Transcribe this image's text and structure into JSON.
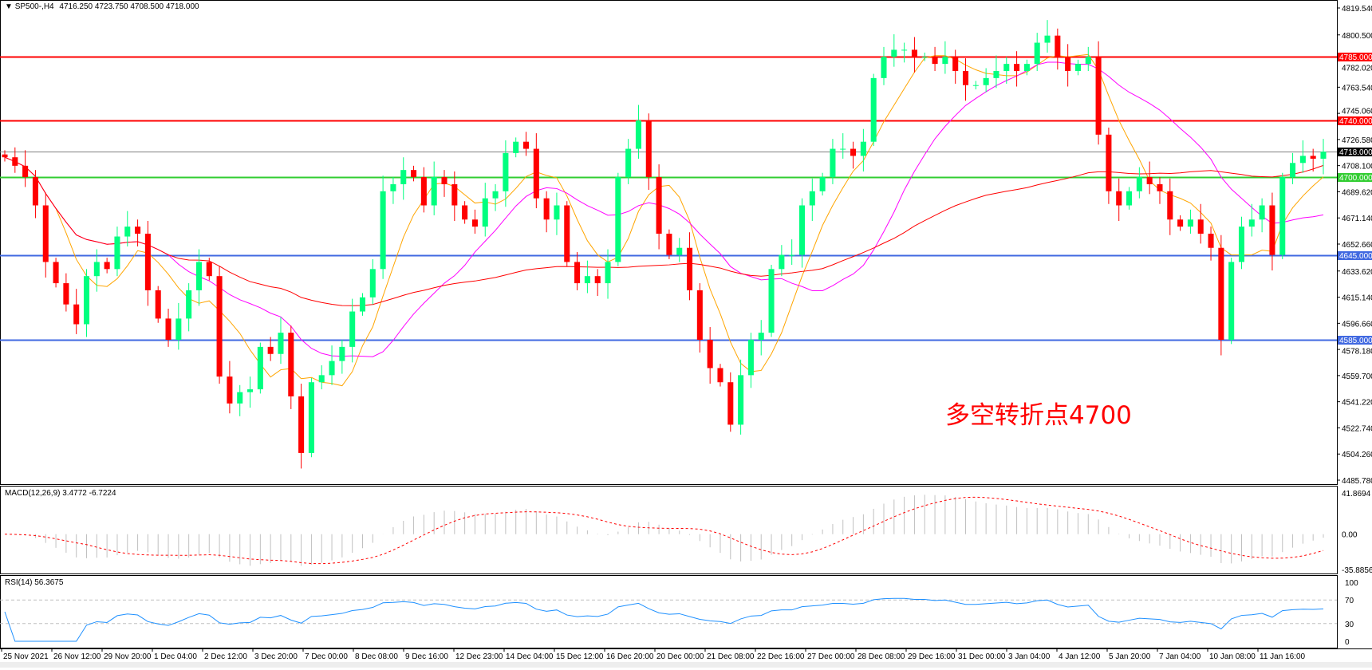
{
  "header": {
    "symbol": "SP500-,H4",
    "ohlc": "4716.250 4723.750 4708.500 4718.000",
    "icon": "triangle-down-icon"
  },
  "annotation": "多空转折点4700",
  "colors": {
    "bull": "#00ff7f",
    "bear": "#ff0000",
    "ma_fast": "#ffa500",
    "ma_mid": "#ff00ff",
    "ma_slow": "#ff0000",
    "resistance": "#ff0000",
    "pivot": "#32cd32",
    "support": "#4169e1",
    "current": "#808080",
    "macd_hist": "#c0c0c0",
    "macd_signal": "#ff0000",
    "rsi": "#1e90ff"
  },
  "chart_data": {
    "type": "candlestick",
    "symbol": "SP500-",
    "timeframe": "H4",
    "ylim": [
      4485.78,
      4819.54
    ],
    "y_ticks": [
      "4819.540",
      "4800.500",
      "4782.020",
      "4763.540",
      "4745.060",
      "4726.580",
      "4708.100",
      "4689.620",
      "4671.140",
      "4652.660",
      "4633.620",
      "4615.140",
      "4596.660",
      "4578.180",
      "4559.700",
      "4541.220",
      "4522.740",
      "4504.260",
      "4485.780"
    ],
    "x_ticks": [
      "25 Nov 2021",
      "26 Nov 12:00",
      "29 Nov 20:00",
      "1 Dec 04:00",
      "2 Dec 12:00",
      "3 Dec 20:00",
      "7 Dec 00:00",
      "8 Dec 08:00",
      "9 Dec 16:00",
      "12 Dec 23:00",
      "14 Dec 04:00",
      "15 Dec 12:00",
      "16 Dec 20:00",
      "20 Dec 00:00",
      "21 Dec 08:00",
      "22 Dec 16:00",
      "27 Dec 00:00",
      "28 Dec 08:00",
      "29 Dec 16:00",
      "31 Dec 00:00",
      "3 Jan 04:00",
      "4 Jan 12:00",
      "5 Jan 20:00",
      "7 Jan 04:00",
      "10 Jan 08:00",
      "11 Jan 16:00"
    ],
    "close": [
      4714,
      4708,
      4700,
      4680,
      4640,
      4625,
      4610,
      4596,
      4630,
      4640,
      4635,
      4658,
      4665,
      4660,
      4620,
      4600,
      4585,
      4600,
      4620,
      4640,
      4630,
      4559,
      4540,
      4548,
      4550,
      4580,
      4575,
      4590,
      4545,
      4505,
      4555,
      4560,
      4570,
      4580,
      4605,
      4615,
      4635,
      4690,
      4695,
      4705,
      4700,
      4680,
      4700,
      4695,
      4680,
      4670,
      4665,
      4685,
      4690,
      4717,
      4725,
      4720,
      4685,
      4670,
      4680,
      4640,
      4625,
      4630,
      4625,
      4640,
      4700,
      4720,
      4740,
      4700,
      4660,
      4645,
      4650,
      4620,
      4585,
      4565,
      4555,
      4525,
      4560,
      4585,
      4590,
      4635,
      4645,
      4645,
      4680,
      4690,
      4700,
      4720,
      4720,
      4715,
      4725,
      4770,
      4785,
      4790,
      4790,
      4785,
      4785,
      4780,
      4785,
      4775,
      4765,
      4765,
      4770,
      4775,
      4780,
      4775,
      4780,
      4795,
      4800,
      4785,
      4775,
      4780,
      4785,
      4730,
      4690,
      4680,
      4690,
      4700,
      4695,
      4690,
      4670,
      4665,
      4670,
      4660,
      4650,
      4585,
      4640,
      4665,
      4670,
      4680,
      4645,
      4700,
      4710,
      4715,
      4713,
      4718
    ],
    "levels": [
      {
        "value": 4785,
        "label": "4785.000",
        "kind": "resistance"
      },
      {
        "value": 4740,
        "label": "4740.000",
        "kind": "resistance"
      },
      {
        "value": 4718,
        "label": "4718.000",
        "kind": "current"
      },
      {
        "value": 4700,
        "label": "4700.000",
        "kind": "pivot"
      },
      {
        "value": 4645,
        "label": "4645.000",
        "kind": "support"
      },
      {
        "value": 4585,
        "label": "4585.000",
        "kind": "support"
      }
    ],
    "macd": {
      "label": "MACD(12,26,9) 3.4772 -6.7224",
      "params": [
        12,
        26,
        9
      ],
      "ylim": [
        -35.8856,
        41.8694
      ],
      "y_ticks": [
        "41.8694",
        "0.00",
        "-35.8856"
      ]
    },
    "rsi": {
      "label": "RSI(14) 56.3675",
      "period": 14,
      "ylim": [
        0,
        100
      ],
      "y_ticks": [
        "100",
        "70",
        "30",
        "0"
      ],
      "levels": [
        70,
        30
      ]
    }
  }
}
